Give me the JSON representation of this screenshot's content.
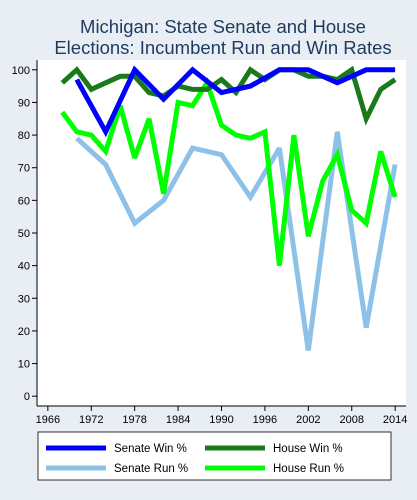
{
  "chart_data": {
    "type": "line",
    "title_lines": [
      "Michigan: State Senate and House",
      "Elections: Incumbent Run and Win Rates"
    ],
    "xlabel": "",
    "ylabel": "",
    "xlim": [
      1964.5,
      2015.5
    ],
    "ylim": [
      -3,
      103
    ],
    "x_ticks": [
      1966,
      1972,
      1978,
      1984,
      1990,
      1996,
      2002,
      2008,
      2014
    ],
    "y_ticks": [
      0,
      10,
      20,
      30,
      40,
      50,
      60,
      70,
      80,
      90,
      100
    ],
    "grid": false,
    "legend_position": "bottom",
    "colors": {
      "background": "#e8eef3",
      "plot_background": "#ffffff",
      "title": "#1e3a5f",
      "axis": "#000000"
    },
    "series": [
      {
        "name": "Senate Run %",
        "color": "#8ec1e8",
        "x": [
          1970,
          1974,
          1978,
          1982,
          1986,
          1990,
          1994,
          1998,
          2002,
          2006,
          2010,
          2014
        ],
        "y": [
          79,
          71,
          53,
          60,
          76,
          74,
          61,
          76,
          14,
          81,
          21,
          71
        ]
      },
      {
        "name": "House Run %",
        "color": "#00ff00",
        "x": [
          1968,
          1970,
          1972,
          1974,
          1976,
          1978,
          1980,
          1982,
          1984,
          1986,
          1988,
          1990,
          1992,
          1994,
          1996,
          1998,
          2000,
          2002,
          2004,
          2006,
          2008,
          2010,
          2012,
          2014
        ],
        "y": [
          87,
          81,
          80,
          75,
          89,
          73,
          85,
          62,
          90,
          89,
          96,
          83,
          80,
          79,
          81,
          40,
          80,
          49,
          66,
          74,
          57,
          53,
          75,
          61
        ]
      },
      {
        "name": "House Win %",
        "color": "#1a7a1a",
        "x": [
          1968,
          1970,
          1972,
          1974,
          1976,
          1978,
          1980,
          1982,
          1984,
          1986,
          1988,
          1990,
          1992,
          1994,
          1996,
          1998,
          2000,
          2002,
          2004,
          2006,
          2008,
          2010,
          2012,
          2014
        ],
        "y": [
          96,
          100,
          94,
          96,
          98,
          98,
          93,
          92,
          95,
          94,
          94,
          97,
          93,
          100,
          97,
          100,
          100,
          98,
          98,
          97,
          100,
          85,
          94,
          97
        ]
      },
      {
        "name": "Senate Win %",
        "color": "#0000ff",
        "x": [
          1970,
          1974,
          1978,
          1982,
          1986,
          1990,
          1994,
          1998,
          2002,
          2006,
          2010,
          2014
        ],
        "y": [
          97,
          81,
          100,
          91,
          100,
          93,
          95,
          100,
          100,
          96,
          100,
          100
        ]
      }
    ],
    "legend_order": [
      "Senate Win %",
      "House Win %",
      "Senate Run %",
      "House Run %"
    ]
  }
}
